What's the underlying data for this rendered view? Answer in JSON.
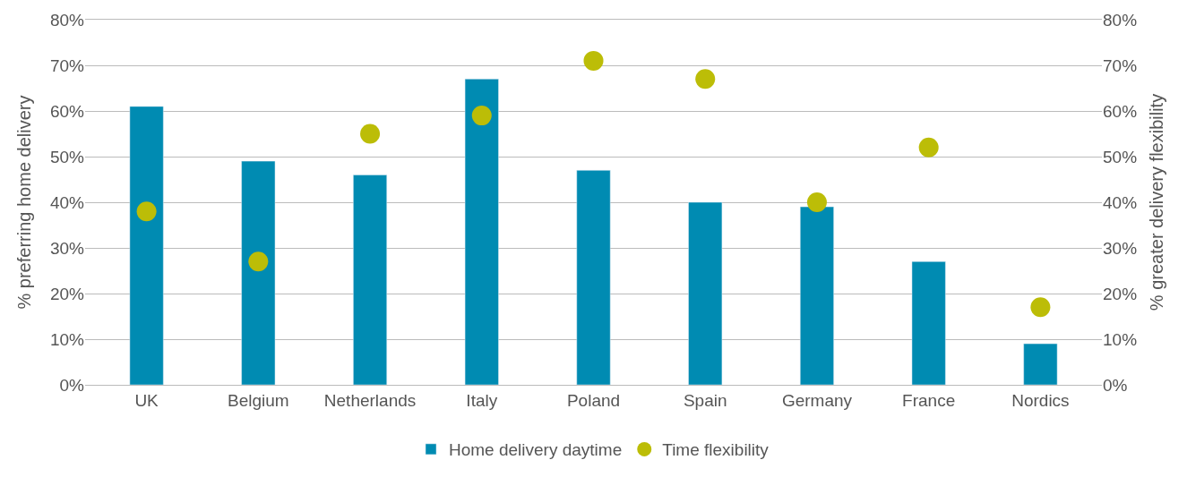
{
  "chart_data": {
    "type": "bar",
    "categories": [
      "UK",
      "Belgium",
      "Netherlands",
      "Italy",
      "Poland",
      "Spain",
      "Germany",
      "France",
      "Nordics"
    ],
    "series": [
      {
        "name": "Home delivery daytime",
        "color": "#008bb2",
        "values": [
          61,
          49,
          46,
          67,
          47,
          40,
          39,
          27,
          9
        ]
      },
      {
        "name": "Time flexibility",
        "color": "#bcbd07",
        "type": "scatter",
        "axis": "y2",
        "marker": "circle",
        "values": [
          38,
          27,
          55,
          59,
          71,
          67,
          40,
          52,
          17
        ]
      }
    ],
    "ylabel": "% preferring home delivery",
    "y2label": "% greater delivery flexibility",
    "ylim": [
      0,
      80
    ],
    "yticks": [
      {
        "value": 0,
        "label": "0%"
      },
      {
        "value": 10,
        "label": "10%"
      },
      {
        "value": 20,
        "label": "20%"
      },
      {
        "value": 30,
        "label": "30%"
      },
      {
        "value": 40,
        "label": "40%"
      },
      {
        "value": 50,
        "label": "50%"
      },
      {
        "value": 60,
        "label": "60%"
      },
      {
        "value": 70,
        "label": "70%"
      },
      {
        "value": 80,
        "label": "80%"
      }
    ],
    "y2lim": [
      0,
      80
    ],
    "y2ticks": [
      {
        "value": 0,
        "label": "0%"
      },
      {
        "value": 10,
        "label": "10%"
      },
      {
        "value": 20,
        "label": "20%"
      },
      {
        "value": 30,
        "label": "30%"
      },
      {
        "value": 40,
        "label": "40%"
      },
      {
        "value": 50,
        "label": "50%"
      },
      {
        "value": 60,
        "label": "60%"
      },
      {
        "value": 70,
        "label": "70%"
      },
      {
        "value": 80,
        "label": "80%"
      }
    ],
    "grid": "y",
    "legend": "bottom"
  }
}
